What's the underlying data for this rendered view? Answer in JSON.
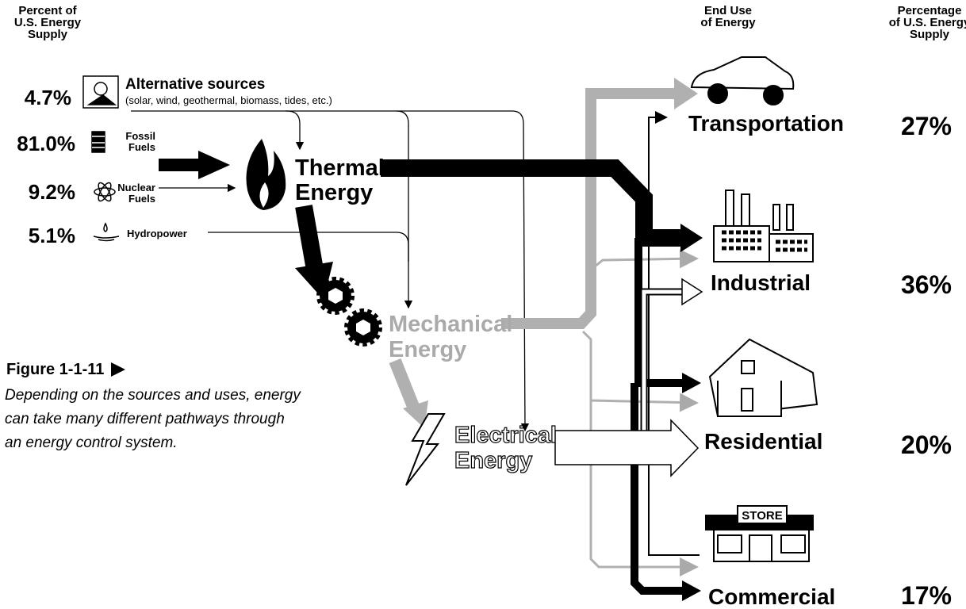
{
  "headers": {
    "source_percent": [
      "Percent of",
      "U.S. Energy",
      "Supply"
    ],
    "end_use": [
      "End Use",
      "of Energy"
    ],
    "use_percent": [
      "Percentage",
      "of U.S. Energy",
      "Supply"
    ]
  },
  "sources": [
    {
      "percent": "4.7%",
      "label": "Alternative sources",
      "note": "(solar, wind, geothermal, biomass, tides, etc.)"
    },
    {
      "percent": "81.0%",
      "label": [
        "Fossil",
        "Fuels"
      ]
    },
    {
      "percent": "9.2%",
      "label": [
        "Nuclear",
        "Fuels"
      ]
    },
    {
      "percent": "5.1%",
      "label": "Hydropower"
    }
  ],
  "energy_forms": [
    {
      "label": [
        "Thermal",
        "Energy"
      ]
    },
    {
      "label": [
        "Mechanical",
        "Energy"
      ]
    },
    {
      "label": [
        "Electrical",
        "Energy"
      ]
    }
  ],
  "end_uses": [
    {
      "label": "Transportation",
      "percent": "27%"
    },
    {
      "label": "Industrial",
      "percent": "36%"
    },
    {
      "label": "Residential",
      "percent": "20%"
    },
    {
      "label": "Commercial",
      "percent": "17%",
      "sign": "STORE"
    }
  ],
  "caption": {
    "figure": "Figure 1-1-11",
    "text": [
      "Depending on the sources and uses, energy",
      "can take many different pathways through",
      "an energy control system."
    ]
  }
}
